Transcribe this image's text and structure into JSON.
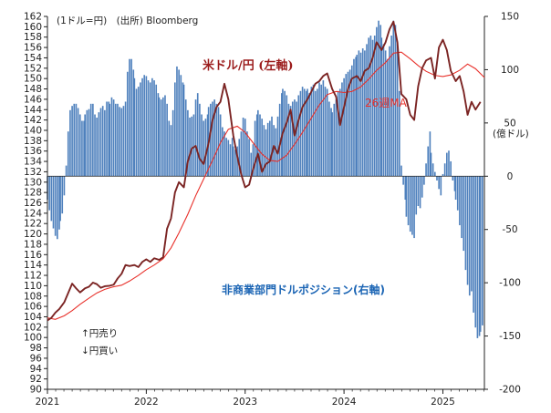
{
  "chart_data": {
    "type": "bar+line",
    "source_note": "(1ドル=円)　(出所) Bloomberg",
    "right_unit": "(億ドル)",
    "annotation_up": "↑円売り",
    "annotation_down": "↓円買い",
    "labels": {
      "usdjpy": "米ドル/円 (左軸)",
      "ma": "26週MA",
      "position": "非商業部門ドルポジション(右軸)"
    },
    "colors": {
      "usdjpy": "#7b2423",
      "ma": "#e8302a",
      "bars": "#4f81bd",
      "axis": "#222222"
    },
    "left_axis": {
      "min": 90,
      "max": 162,
      "step": 2
    },
    "right_axis": {
      "min": -200,
      "max": 150,
      "step": 50
    },
    "x_axis": {
      "min": 2021.0,
      "max": 2025.42,
      "ticks": [
        "2021",
        "2022",
        "2023",
        "2024",
        "2025"
      ]
    },
    "usdjpy": [
      [
        2021.0,
        103.3
      ],
      [
        2021.04,
        103.8
      ],
      [
        2021.08,
        104.8
      ],
      [
        2021.12,
        105.5
      ],
      [
        2021.17,
        106.8
      ],
      [
        2021.21,
        108.6
      ],
      [
        2021.25,
        110.4
      ],
      [
        2021.29,
        109.5
      ],
      [
        2021.33,
        108.7
      ],
      [
        2021.38,
        109.5
      ],
      [
        2021.42,
        109.8
      ],
      [
        2021.46,
        110.6
      ],
      [
        2021.5,
        110.3
      ],
      [
        2021.54,
        109.6
      ],
      [
        2021.58,
        109.9
      ],
      [
        2021.63,
        110.0
      ],
      [
        2021.67,
        110.2
      ],
      [
        2021.71,
        111.4
      ],
      [
        2021.75,
        112.3
      ],
      [
        2021.79,
        114.0
      ],
      [
        2021.83,
        113.8
      ],
      [
        2021.88,
        114.0
      ],
      [
        2021.92,
        113.6
      ],
      [
        2021.96,
        114.6
      ],
      [
        2022.0,
        115.1
      ],
      [
        2022.04,
        114.6
      ],
      [
        2022.08,
        115.3
      ],
      [
        2022.13,
        115.0
      ],
      [
        2022.17,
        115.5
      ],
      [
        2022.21,
        121.0
      ],
      [
        2022.25,
        123.0
      ],
      [
        2022.29,
        128.0
      ],
      [
        2022.33,
        130.0
      ],
      [
        2022.38,
        129.0
      ],
      [
        2022.42,
        134.0
      ],
      [
        2022.46,
        136.5
      ],
      [
        2022.5,
        137.0
      ],
      [
        2022.54,
        134.5
      ],
      [
        2022.58,
        133.5
      ],
      [
        2022.63,
        137.5
      ],
      [
        2022.67,
        142.0
      ],
      [
        2022.71,
        144.5
      ],
      [
        2022.75,
        145.5
      ],
      [
        2022.79,
        149.0
      ],
      [
        2022.83,
        146.0
      ],
      [
        2022.88,
        139.0
      ],
      [
        2022.92,
        135.0
      ],
      [
        2022.96,
        131.5
      ],
      [
        2023.0,
        129.0
      ],
      [
        2023.04,
        129.5
      ],
      [
        2023.08,
        132.5
      ],
      [
        2023.13,
        135.5
      ],
      [
        2023.17,
        132.0
      ],
      [
        2023.21,
        133.5
      ],
      [
        2023.25,
        134.0
      ],
      [
        2023.29,
        137.0
      ],
      [
        2023.33,
        135.5
      ],
      [
        2023.38,
        139.5
      ],
      [
        2023.42,
        141.5
      ],
      [
        2023.46,
        144.0
      ],
      [
        2023.5,
        139.0
      ],
      [
        2023.54,
        142.0
      ],
      [
        2023.58,
        144.5
      ],
      [
        2023.63,
        146.0
      ],
      [
        2023.67,
        147.5
      ],
      [
        2023.71,
        149.0
      ],
      [
        2023.75,
        149.5
      ],
      [
        2023.79,
        150.5
      ],
      [
        2023.83,
        151.0
      ],
      [
        2023.88,
        148.0
      ],
      [
        2023.92,
        146.5
      ],
      [
        2023.96,
        141.0
      ],
      [
        2024.0,
        144.5
      ],
      [
        2024.04,
        148.0
      ],
      [
        2024.08,
        150.0
      ],
      [
        2024.13,
        150.5
      ],
      [
        2024.17,
        149.5
      ],
      [
        2024.21,
        151.5
      ],
      [
        2024.25,
        152.0
      ],
      [
        2024.29,
        154.0
      ],
      [
        2024.33,
        157.0
      ],
      [
        2024.38,
        155.5
      ],
      [
        2024.42,
        157.0
      ],
      [
        2024.46,
        159.5
      ],
      [
        2024.5,
        161.0
      ],
      [
        2024.54,
        157.0
      ],
      [
        2024.58,
        147.0
      ],
      [
        2024.63,
        146.0
      ],
      [
        2024.67,
        143.0
      ],
      [
        2024.71,
        142.0
      ],
      [
        2024.75,
        148.5
      ],
      [
        2024.79,
        152.0
      ],
      [
        2024.83,
        153.5
      ],
      [
        2024.88,
        154.0
      ],
      [
        2024.92,
        150.0
      ],
      [
        2024.96,
        156.0
      ],
      [
        2025.0,
        157.5
      ],
      [
        2025.04,
        155.5
      ],
      [
        2025.08,
        151.5
      ],
      [
        2025.13,
        149.5
      ],
      [
        2025.17,
        150.5
      ],
      [
        2025.21,
        147.5
      ],
      [
        2025.25,
        143.0
      ],
      [
        2025.29,
        145.5
      ],
      [
        2025.33,
        144.0
      ],
      [
        2025.38,
        145.5
      ]
    ],
    "ma26": [
      [
        2021.0,
        103.8
      ],
      [
        2021.08,
        103.5
      ],
      [
        2021.17,
        104.2
      ],
      [
        2021.25,
        105.2
      ],
      [
        2021.33,
        106.4
      ],
      [
        2021.42,
        107.6
      ],
      [
        2021.5,
        108.6
      ],
      [
        2021.58,
        109.3
      ],
      [
        2021.67,
        109.8
      ],
      [
        2021.75,
        110.1
      ],
      [
        2021.83,
        110.9
      ],
      [
        2021.92,
        112.0
      ],
      [
        2022.0,
        113.1
      ],
      [
        2022.08,
        114.0
      ],
      [
        2022.17,
        115.2
      ],
      [
        2022.25,
        117.3
      ],
      [
        2022.33,
        120.2
      ],
      [
        2022.42,
        123.8
      ],
      [
        2022.5,
        127.4
      ],
      [
        2022.58,
        130.6
      ],
      [
        2022.67,
        134.2
      ],
      [
        2022.75,
        137.6
      ],
      [
        2022.83,
        140.2
      ],
      [
        2022.92,
        140.8
      ],
      [
        2023.0,
        139.6
      ],
      [
        2023.08,
        137.6
      ],
      [
        2023.17,
        135.4
      ],
      [
        2023.25,
        134.2
      ],
      [
        2023.33,
        134.0
      ],
      [
        2023.42,
        135.2
      ],
      [
        2023.5,
        137.3
      ],
      [
        2023.58,
        139.6
      ],
      [
        2023.67,
        142.4
      ],
      [
        2023.75,
        144.9
      ],
      [
        2023.83,
        146.9
      ],
      [
        2023.92,
        147.5
      ],
      [
        2024.0,
        147.3
      ],
      [
        2024.08,
        147.5
      ],
      [
        2024.17,
        148.4
      ],
      [
        2024.25,
        149.9
      ],
      [
        2024.33,
        151.6
      ],
      [
        2024.42,
        153.1
      ],
      [
        2024.5,
        154.9
      ],
      [
        2024.58,
        155.1
      ],
      [
        2024.67,
        153.8
      ],
      [
        2024.75,
        152.5
      ],
      [
        2024.83,
        151.4
      ],
      [
        2024.92,
        150.6
      ],
      [
        2025.0,
        150.4
      ],
      [
        2025.08,
        150.7
      ],
      [
        2025.17,
        151.6
      ],
      [
        2025.25,
        152.8
      ],
      [
        2025.33,
        151.9
      ],
      [
        2025.42,
        150.2
      ]
    ],
    "position_bars": [
      [
        2021.0,
        -22
      ],
      [
        2021.02,
        -32
      ],
      [
        2021.04,
        -42
      ],
      [
        2021.06,
        -49
      ],
      [
        2021.08,
        -56
      ],
      [
        2021.1,
        -59
      ],
      [
        2021.12,
        -50
      ],
      [
        2021.13,
        -42
      ],
      [
        2021.15,
        -35
      ],
      [
        2021.17,
        -18
      ],
      [
        2021.19,
        10
      ],
      [
        2021.21,
        42
      ],
      [
        2021.23,
        62
      ],
      [
        2021.25,
        66
      ],
      [
        2021.27,
        68
      ],
      [
        2021.29,
        68
      ],
      [
        2021.31,
        64
      ],
      [
        2021.33,
        58
      ],
      [
        2021.35,
        52
      ],
      [
        2021.37,
        52
      ],
      [
        2021.38,
        58
      ],
      [
        2021.4,
        62
      ],
      [
        2021.42,
        63
      ],
      [
        2021.44,
        68
      ],
      [
        2021.46,
        68
      ],
      [
        2021.48,
        58
      ],
      [
        2021.5,
        55
      ],
      [
        2021.52,
        60
      ],
      [
        2021.54,
        64
      ],
      [
        2021.56,
        66
      ],
      [
        2021.58,
        62
      ],
      [
        2021.6,
        70
      ],
      [
        2021.62,
        70
      ],
      [
        2021.63,
        68
      ],
      [
        2021.65,
        74
      ],
      [
        2021.67,
        72
      ],
      [
        2021.69,
        68
      ],
      [
        2021.71,
        68
      ],
      [
        2021.73,
        65
      ],
      [
        2021.75,
        64
      ],
      [
        2021.77,
        66
      ],
      [
        2021.79,
        70
      ],
      [
        2021.81,
        98
      ],
      [
        2021.83,
        110
      ],
      [
        2021.85,
        110
      ],
      [
        2021.87,
        100
      ],
      [
        2021.88,
        92
      ],
      [
        2021.9,
        82
      ],
      [
        2021.92,
        84
      ],
      [
        2021.94,
        88
      ],
      [
        2021.96,
        92
      ],
      [
        2021.98,
        95
      ],
      [
        2022.0,
        94
      ],
      [
        2022.02,
        90
      ],
      [
        2022.04,
        88
      ],
      [
        2022.06,
        92
      ],
      [
        2022.08,
        90
      ],
      [
        2022.1,
        86
      ],
      [
        2022.12,
        78
      ],
      [
        2022.13,
        74
      ],
      [
        2022.15,
        72
      ],
      [
        2022.17,
        74
      ],
      [
        2022.19,
        76
      ],
      [
        2022.21,
        68
      ],
      [
        2022.23,
        52
      ],
      [
        2022.25,
        48
      ],
      [
        2022.27,
        62
      ],
      [
        2022.29,
        88
      ],
      [
        2022.31,
        103
      ],
      [
        2022.33,
        100
      ],
      [
        2022.35,
        95
      ],
      [
        2022.37,
        88
      ],
      [
        2022.38,
        86
      ],
      [
        2022.4,
        72
      ],
      [
        2022.42,
        62
      ],
      [
        2022.44,
        55
      ],
      [
        2022.46,
        56
      ],
      [
        2022.48,
        58
      ],
      [
        2022.5,
        72
      ],
      [
        2022.52,
        78
      ],
      [
        2022.54,
        68
      ],
      [
        2022.56,
        58
      ],
      [
        2022.58,
        52
      ],
      [
        2022.6,
        54
      ],
      [
        2022.62,
        58
      ],
      [
        2022.63,
        65
      ],
      [
        2022.65,
        68
      ],
      [
        2022.67,
        70
      ],
      [
        2022.69,
        72
      ],
      [
        2022.71,
        68
      ],
      [
        2022.73,
        65
      ],
      [
        2022.75,
        58
      ],
      [
        2022.77,
        46
      ],
      [
        2022.79,
        42
      ],
      [
        2022.81,
        36
      ],
      [
        2022.83,
        34
      ],
      [
        2022.85,
        30
      ],
      [
        2022.87,
        36
      ],
      [
        2022.88,
        28
      ],
      [
        2022.9,
        25
      ],
      [
        2022.92,
        28
      ],
      [
        2022.94,
        35
      ],
      [
        2022.96,
        42
      ],
      [
        2022.98,
        55
      ],
      [
        2023.0,
        54
      ],
      [
        2023.02,
        42
      ],
      [
        2023.04,
        35
      ],
      [
        2023.06,
        22
      ],
      [
        2023.08,
        30
      ],
      [
        2023.1,
        52
      ],
      [
        2023.12,
        58
      ],
      [
        2023.13,
        62
      ],
      [
        2023.15,
        58
      ],
      [
        2023.17,
        54
      ],
      [
        2023.19,
        48
      ],
      [
        2023.21,
        44
      ],
      [
        2023.23,
        50
      ],
      [
        2023.25,
        52
      ],
      [
        2023.27,
        56
      ],
      [
        2023.29,
        48
      ],
      [
        2023.31,
        45
      ],
      [
        2023.33,
        56
      ],
      [
        2023.35,
        68
      ],
      [
        2023.37,
        78
      ],
      [
        2023.38,
        82
      ],
      [
        2023.4,
        80
      ],
      [
        2023.42,
        76
      ],
      [
        2023.44,
        68
      ],
      [
        2023.46,
        66
      ],
      [
        2023.48,
        70
      ],
      [
        2023.5,
        72
      ],
      [
        2023.52,
        70
      ],
      [
        2023.54,
        76
      ],
      [
        2023.56,
        80
      ],
      [
        2023.58,
        84
      ],
      [
        2023.6,
        82
      ],
      [
        2023.62,
        80
      ],
      [
        2023.63,
        82
      ],
      [
        2023.65,
        78
      ],
      [
        2023.67,
        84
      ],
      [
        2023.69,
        86
      ],
      [
        2023.71,
        80
      ],
      [
        2023.73,
        82
      ],
      [
        2023.75,
        88
      ],
      [
        2023.77,
        86
      ],
      [
        2023.79,
        90
      ],
      [
        2023.81,
        84
      ],
      [
        2023.83,
        82
      ],
      [
        2023.85,
        70
      ],
      [
        2023.87,
        64
      ],
      [
        2023.88,
        60
      ],
      [
        2023.9,
        68
      ],
      [
        2023.92,
        72
      ],
      [
        2023.94,
        80
      ],
      [
        2023.96,
        82
      ],
      [
        2023.98,
        88
      ],
      [
        2024.0,
        92
      ],
      [
        2024.02,
        96
      ],
      [
        2024.04,
        98
      ],
      [
        2024.06,
        100
      ],
      [
        2024.08,
        104
      ],
      [
        2024.1,
        110
      ],
      [
        2024.12,
        112
      ],
      [
        2024.13,
        114
      ],
      [
        2024.15,
        118
      ],
      [
        2024.17,
        116
      ],
      [
        2024.19,
        120
      ],
      [
        2024.21,
        118
      ],
      [
        2024.23,
        124
      ],
      [
        2024.25,
        130
      ],
      [
        2024.27,
        132
      ],
      [
        2024.29,
        128
      ],
      [
        2024.31,
        132
      ],
      [
        2024.33,
        140
      ],
      [
        2024.35,
        146
      ],
      [
        2024.37,
        142
      ],
      [
        2024.38,
        130
      ],
      [
        2024.4,
        124
      ],
      [
        2024.42,
        118
      ],
      [
        2024.44,
        110
      ],
      [
        2024.46,
        122
      ],
      [
        2024.48,
        132
      ],
      [
        2024.5,
        146
      ],
      [
        2024.52,
        142
      ],
      [
        2024.54,
        124
      ],
      [
        2024.56,
        80
      ],
      [
        2024.58,
        10
      ],
      [
        2024.6,
        -8
      ],
      [
        2024.62,
        -22
      ],
      [
        2024.63,
        -38
      ],
      [
        2024.65,
        -46
      ],
      [
        2024.67,
        -52
      ],
      [
        2024.69,
        -55
      ],
      [
        2024.71,
        -58
      ],
      [
        2024.73,
        -36
      ],
      [
        2024.75,
        -28
      ],
      [
        2024.77,
        -30
      ],
      [
        2024.79,
        -20
      ],
      [
        2024.81,
        -8
      ],
      [
        2024.83,
        12
      ],
      [
        2024.85,
        28
      ],
      [
        2024.87,
        42
      ],
      [
        2024.88,
        22
      ],
      [
        2024.9,
        12
      ],
      [
        2024.92,
        4
      ],
      [
        2024.94,
        -4
      ],
      [
        2024.96,
        -12
      ],
      [
        2024.98,
        -18
      ],
      [
        2025.0,
        2
      ],
      [
        2025.02,
        12
      ],
      [
        2025.04,
        22
      ],
      [
        2025.06,
        24
      ],
      [
        2025.08,
        14
      ],
      [
        2025.1,
        -4
      ],
      [
        2025.12,
        -14
      ],
      [
        2025.13,
        -22
      ],
      [
        2025.15,
        -32
      ],
      [
        2025.17,
        -46
      ],
      [
        2025.19,
        -58
      ],
      [
        2025.21,
        -70
      ],
      [
        2025.23,
        -88
      ],
      [
        2025.25,
        -102
      ],
      [
        2025.27,
        -112
      ],
      [
        2025.29,
        -108
      ],
      [
        2025.31,
        -128
      ],
      [
        2025.33,
        -142
      ],
      [
        2025.35,
        -152
      ],
      [
        2025.37,
        -150
      ],
      [
        2025.38,
        -146
      ],
      [
        2025.4,
        -140
      ]
    ]
  }
}
